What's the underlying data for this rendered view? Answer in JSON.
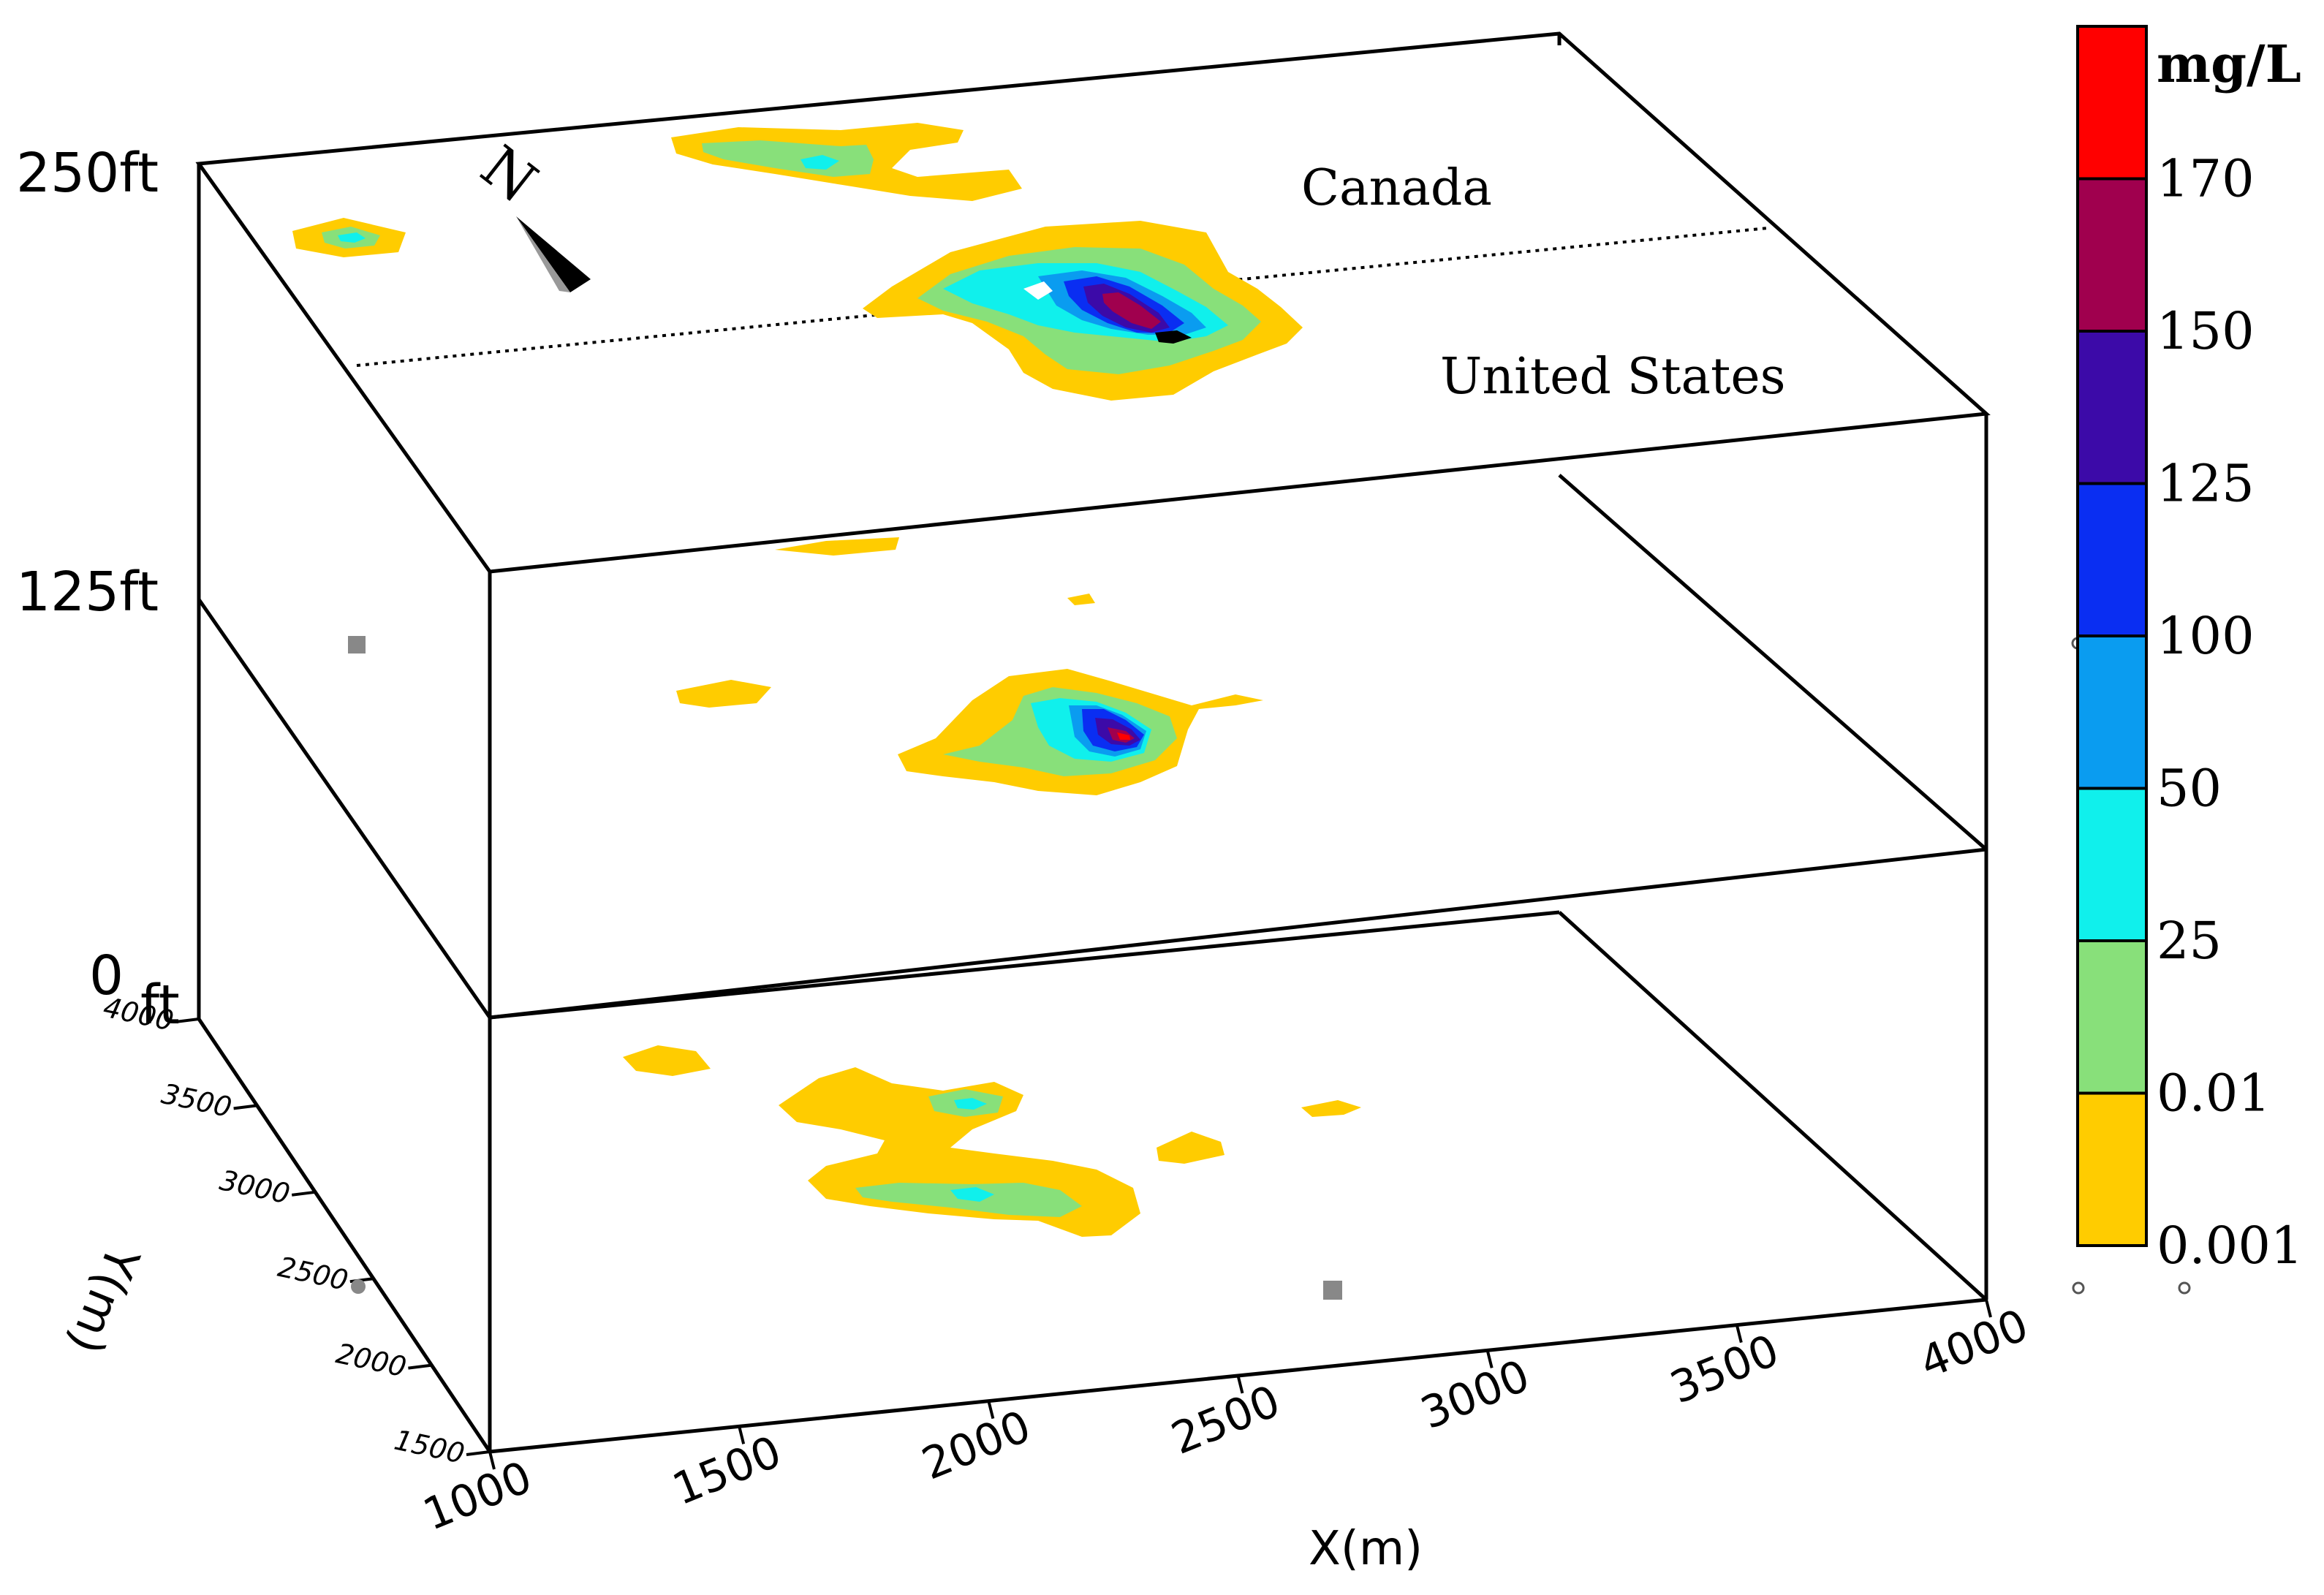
{
  "chart_data": {
    "type": "contour",
    "xlabel": "X(m)",
    "ylabel": "Y(m)",
    "x_ticks": [
      "1000",
      "1500",
      "2000",
      "2500",
      "3000",
      "3500",
      "4000"
    ],
    "y_ticks": [
      "4000",
      "3500",
      "3000",
      "2500",
      "2000",
      "1500"
    ],
    "xlim": [
      1000,
      4000
    ],
    "ylim": [
      1500,
      4000
    ],
    "depth_labels": [
      "250ft",
      "125ft",
      "0",
      "ft"
    ],
    "annotations": {
      "north": "N",
      "canada": "Canada",
      "usa": "United States"
    },
    "colorbar": {
      "unit": "mg/L",
      "labels": [
        "170",
        "150",
        "125",
        "100",
        "50",
        "25",
        "0.01",
        "0.001"
      ],
      "colors": [
        "#ff0000",
        "#a0004e",
        "#3c0aa8",
        "#0a2ef2",
        "#0a9cf0",
        "#10f0ec",
        "#88e07a",
        "#ffcc00"
      ]
    },
    "slices": [
      {
        "depth": "250ft",
        "max_class": "170",
        "features": "main plume with high-concentration core along the Canada-United States border; smaller low-level patches to the north-west"
      },
      {
        "depth": "125ft",
        "max_class": "170",
        "features": "central plume with small high-concentration core; isolated low-level patches"
      },
      {
        "depth": "0 ft",
        "max_class": "50",
        "features": "low-level patches with small 25-50 mg/L spots"
      }
    ]
  }
}
